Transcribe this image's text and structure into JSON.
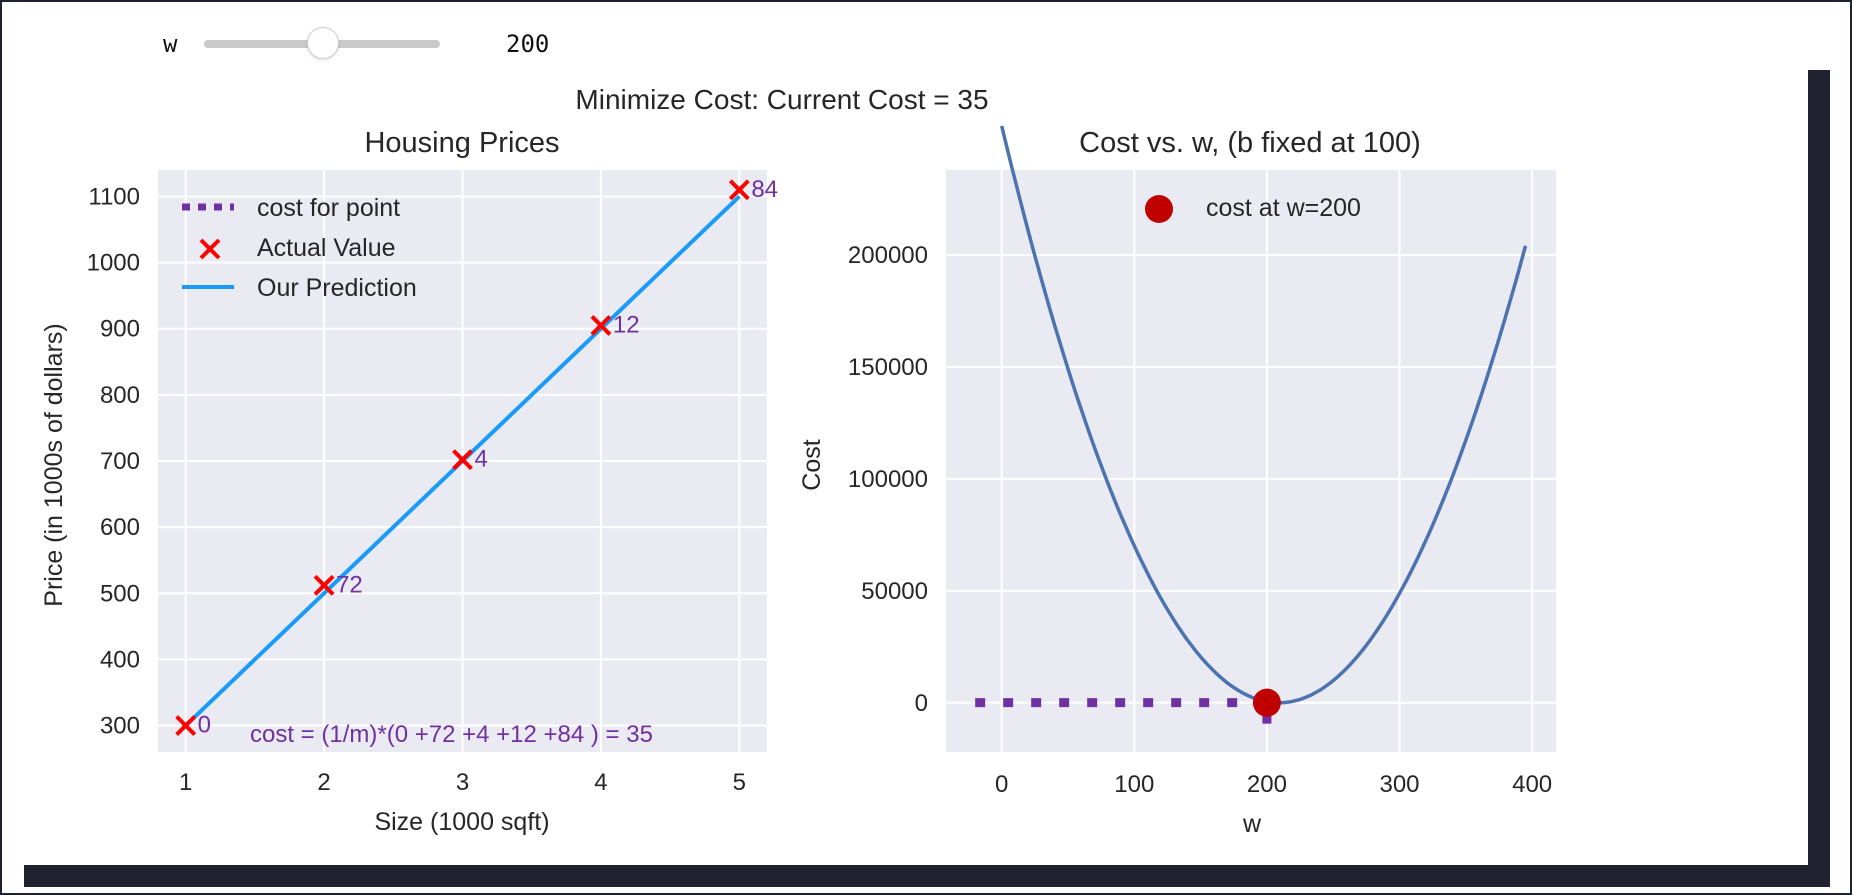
{
  "slider": {
    "label": "w",
    "value": 200,
    "readout": "200",
    "min": -100,
    "max": 500
  },
  "figure": {
    "suptitle": "Minimize Cost: Current Cost = 35"
  },
  "colors": {
    "axes_bg": "#eaeaf2",
    "grid": "#ffffff",
    "prediction": "#1a9bfa",
    "actual": "#ff0000",
    "cost_annot": "#7030a0",
    "cost_curve": "#4c72b0",
    "cost_point": "#c00000"
  },
  "chart_data": [
    {
      "type": "line",
      "title": "Housing Prices",
      "xlabel": "Size (1000 sqft)",
      "ylabel": "Price (in 1000s of dollars)",
      "xlim": [
        0.8,
        5.2
      ],
      "ylim": [
        260,
        1140
      ],
      "xticks": [
        1,
        2,
        3,
        4,
        5
      ],
      "yticks": [
        300,
        400,
        500,
        600,
        700,
        800,
        900,
        1000,
        1100
      ],
      "grid": true,
      "legend_position": "top-left",
      "legend": [
        "cost for point",
        "Actual Value",
        "Our Prediction"
      ],
      "actual": {
        "name": "Actual Value",
        "x": [
          1,
          2,
          3,
          4,
          5
        ],
        "y": [
          300,
          512,
          702,
          905,
          1110
        ]
      },
      "prediction": {
        "name": "Our Prediction",
        "x": [
          1,
          5
        ],
        "y": [
          300,
          1100
        ]
      },
      "point_costs": [
        "0",
        "72",
        "4",
        "12",
        "84"
      ],
      "annotation": "cost = (1/m)*(0 +72 +4 +12 +84 ) = 35"
    },
    {
      "type": "line",
      "title": "Cost vs. w, (b fixed at 100)",
      "xlabel": "w",
      "ylabel": "Cost",
      "xlim": [
        -42,
        418
      ],
      "ylim": [
        -22000,
        238000
      ],
      "xticks": [
        0,
        100,
        200,
        300,
        400
      ],
      "yticks": [
        0,
        50000,
        100000,
        150000,
        200000
      ],
      "grid": true,
      "legend_position": "top-center",
      "legend": [
        "cost at w=200"
      ],
      "curve": {
        "w_range": [
          0,
          395
        ],
        "vertex_w": 209,
        "a": 5.9
      },
      "point": {
        "name": "cost at w=200",
        "x": 200,
        "y": 35
      },
      "guide": {
        "x_from": -20,
        "x_to": 200,
        "y": 35
      }
    }
  ]
}
